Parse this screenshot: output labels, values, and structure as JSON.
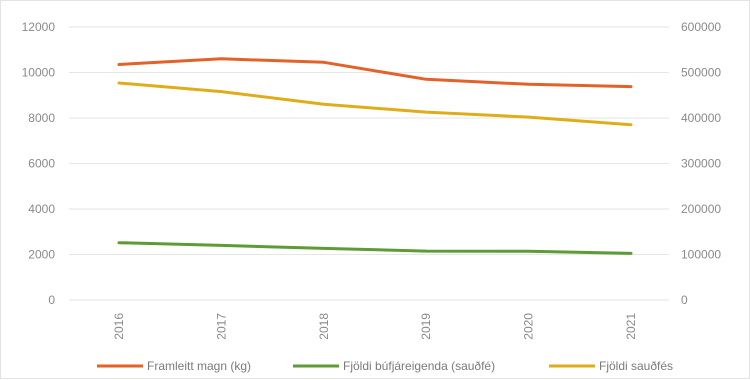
{
  "chart_data": {
    "type": "line",
    "title": "",
    "xlabel": "",
    "ylabel": "",
    "y2label": "",
    "x": [
      "2016",
      "2017",
      "2018",
      "2019",
      "2020",
      "2021"
    ],
    "ylim": [
      0,
      12000
    ],
    "y_ticks": [
      "0",
      "2000",
      "4000",
      "6000",
      "8000",
      "10000",
      "12000"
    ],
    "y2lim": [
      0,
      600000
    ],
    "y2_ticks": [
      "0",
      "100000",
      "200000",
      "300000",
      "400000",
      "500000",
      "600000"
    ],
    "grid": true,
    "legend_position": "bottom",
    "series": [
      {
        "name": "Framleitt magn (kg)",
        "axis": "left",
        "color": "#e2622a",
        "values": [
          10350,
          10600,
          10450,
          9700,
          9480,
          9380
        ]
      },
      {
        "name": "Fjöldi búfjáreigenda (sauðfé)",
        "axis": "left",
        "color": "#5e9a35",
        "values": [
          2520,
          2400,
          2270,
          2150,
          2140,
          2050
        ]
      },
      {
        "name": "Fjöldi sauðfés",
        "axis": "right",
        "color": "#e0ad1a",
        "values": [
          477000,
          458000,
          430000,
          413000,
          402000,
          385000
        ]
      }
    ]
  }
}
